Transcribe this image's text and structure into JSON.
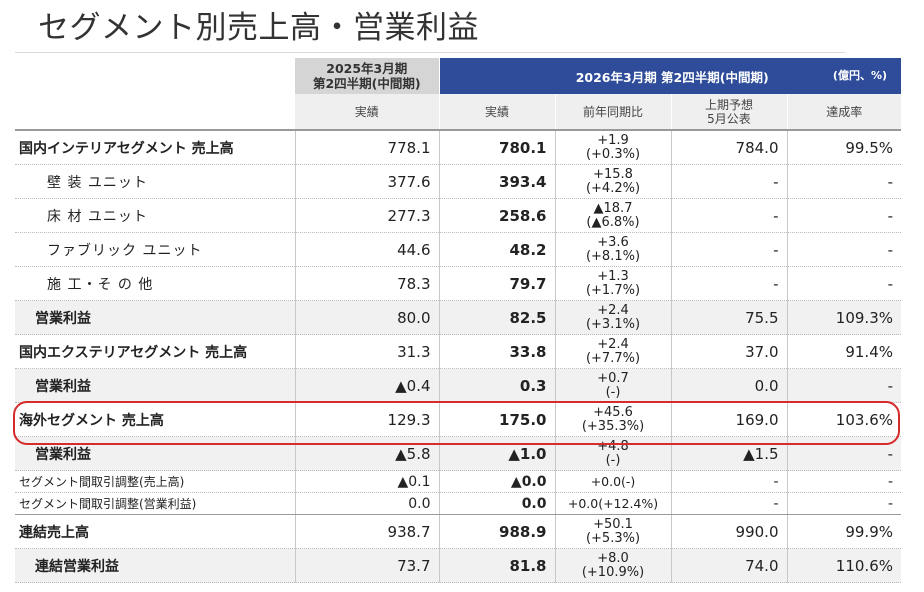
{
  "title": "セグメント別売上高・営業利益",
  "header": {
    "prev_period_line1": "2025年3月期",
    "prev_period_line2": "第2四半期(中間期)",
    "cur_period": "2026年3月期 第2四半期(中間期)",
    "unit": "(億円、%)",
    "col_prev_actual": "実績",
    "col_cur_actual": "実績",
    "col_yoy": "前年同期比",
    "col_forecast_line1": "上期予想",
    "col_forecast_line2": "5月公表",
    "col_achievement": "達成率"
  },
  "rows": [
    {
      "label": "国内インテリアセグメント 売上高",
      "prev": "778.1",
      "cur": "780.1",
      "yoy1": "+1.9",
      "yoy2": "(+0.3%)",
      "fc": "784.0",
      "ach": "99.5%"
    },
    {
      "label": "壁 装 ユニット",
      "prev": "377.6",
      "cur": "393.4",
      "yoy1": "+15.8",
      "yoy2": "(+4.2%)",
      "fc": "-",
      "ach": "-"
    },
    {
      "label": "床 材 ユニット",
      "prev": "277.3",
      "cur": "258.6",
      "yoy1": "▲18.7",
      "yoy2": "(▲6.8%)",
      "fc": "-",
      "ach": "-"
    },
    {
      "label": "ファブリック ユニット",
      "prev": "44.6",
      "cur": "48.2",
      "yoy1": "+3.6",
      "yoy2": "(+8.1%)",
      "fc": "-",
      "ach": "-"
    },
    {
      "label": "施 工・そ の 他",
      "prev": "78.3",
      "cur": "79.7",
      "yoy1": "+1.3",
      "yoy2": "(+1.7%)",
      "fc": "-",
      "ach": "-"
    },
    {
      "label": "営業利益",
      "prev": "80.0",
      "cur": "82.5",
      "yoy1": "+2.4",
      "yoy2": "(+3.1%)",
      "fc": "75.5",
      "ach": "109.3%"
    },
    {
      "label": "国内エクステリアセグメント 売上高",
      "prev": "31.3",
      "cur": "33.8",
      "yoy1": "+2.4",
      "yoy2": "(+7.7%)",
      "fc": "37.0",
      "ach": "91.4%"
    },
    {
      "label": "営業利益",
      "prev": "▲0.4",
      "cur": "0.3",
      "yoy1": "+0.7",
      "yoy2": "(-)",
      "fc": "0.0",
      "ach": "-"
    },
    {
      "label": "海外セグメント 売上高",
      "prev": "129.3",
      "cur": "175.0",
      "yoy1": "+45.6",
      "yoy2": "(+35.3%)",
      "fc": "169.0",
      "ach": "103.6%"
    },
    {
      "label": "営業利益",
      "prev": "▲5.8",
      "cur": "▲1.0",
      "yoy1": "+4.8",
      "yoy2": "(-)",
      "fc": "▲1.5",
      "ach": "-"
    },
    {
      "label": "セグメント間取引調整(売上高)",
      "prev": "▲0.1",
      "cur": "▲0.0",
      "yoy": "+0.0(-)",
      "fc": "-",
      "ach": "-"
    },
    {
      "label": "セグメント間取引調整(営業利益)",
      "prev": "0.0",
      "cur": "0.0",
      "yoy": "+0.0(+12.4%)",
      "fc": "-",
      "ach": "-"
    },
    {
      "label": "連結売上高",
      "prev": "938.7",
      "cur": "988.9",
      "yoy1": "+50.1",
      "yoy2": "(+5.3%)",
      "fc": "990.0",
      "ach": "99.9%"
    },
    {
      "label": "連結営業利益",
      "prev": "73.7",
      "cur": "81.8",
      "yoy1": "+8.0",
      "yoy2": "(+10.9%)",
      "fc": "74.0",
      "ach": "110.6%"
    }
  ],
  "colors": {
    "header_blue": "#2e4c9a",
    "highlight_red": "#d62b2b",
    "gray_row": "#f1f1f1"
  }
}
